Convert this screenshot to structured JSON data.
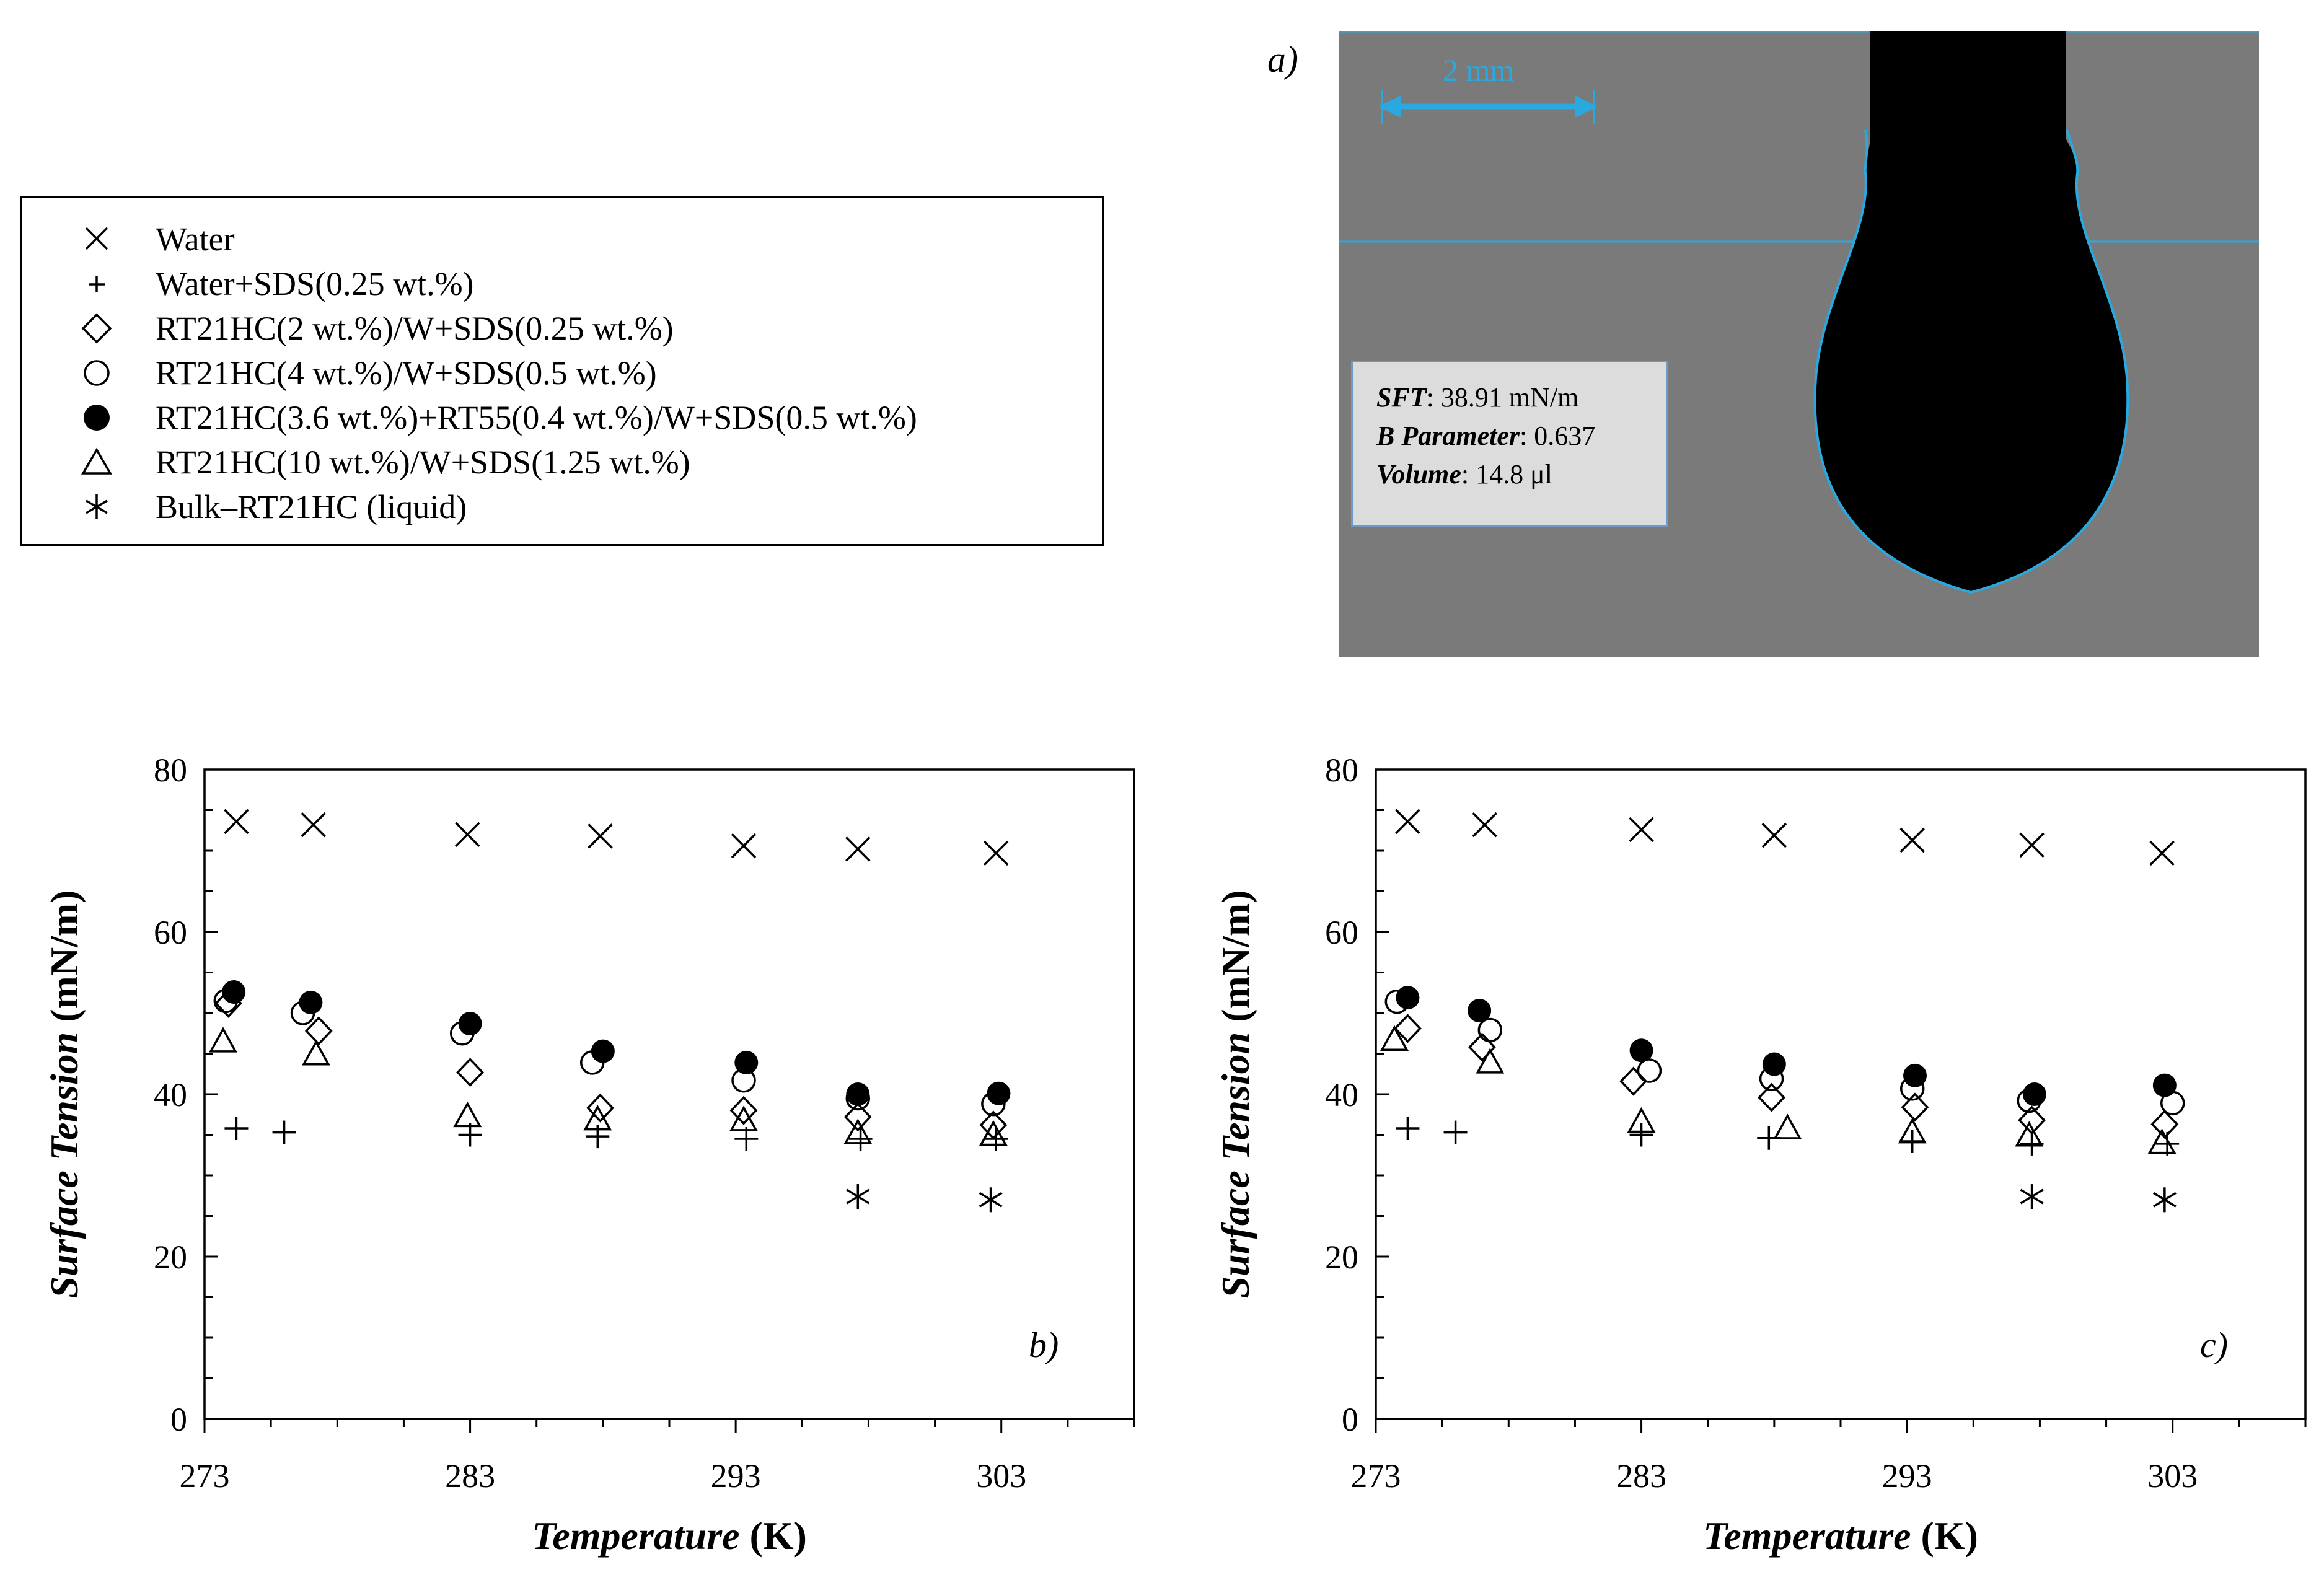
{
  "legend": {
    "items": [
      {
        "marker": "x",
        "label": "Water"
      },
      {
        "marker": "plus",
        "label": "Water+SDS(0.25 wt.%)"
      },
      {
        "marker": "diamond",
        "label": "RT21HC(2 wt.%)/W+SDS(0.25 wt.%)"
      },
      {
        "marker": "circle-open",
        "label": "RT21HC(4 wt.%)/W+SDS(0.5 wt.%)"
      },
      {
        "marker": "circle-filled",
        "label": "RT21HC(3.6 wt.%)+RT55(0.4 wt.%)/W+SDS(0.5 wt.%)"
      },
      {
        "marker": "triangle",
        "label": "RT21HC(10 wt.%)/W+SDS(1.25 wt.%)"
      },
      {
        "marker": "asterisk",
        "label": "Bulk–RT21HC (liquid)"
      }
    ]
  },
  "droplet": {
    "panel_label": "a)",
    "scale_label": "2 mm",
    "sft_key": "SFT",
    "sft_value": ": 38.91 mN/m",
    "b_key": "B Parameter",
    "b_value": ": 0.637",
    "volume_key": "Volume",
    "volume_value": ": 14.8 μl",
    "colors": {
      "background": "#7a7a7a",
      "drop": "#000000",
      "contour": "#29a9df"
    }
  },
  "chart_data": [
    {
      "type": "scatter",
      "panel_label": "b)",
      "xlabel_italic": "Temperature",
      "xlabel_unit": " (K)",
      "ylabel_italic": "Surface Tension",
      "ylabel_unit": " (mN/m)",
      "xlim": [
        273,
        308
      ],
      "ylim": [
        0,
        80
      ],
      "xticks": [
        273,
        283,
        293,
        303
      ],
      "yticks": [
        0,
        20,
        40,
        60,
        80
      ],
      "series": [
        {
          "name": "Water",
          "marker": "x",
          "x": [
            274.2,
            277.1,
            282.9,
            287.9,
            293.3,
            297.6,
            302.8
          ],
          "y": [
            73.6,
            73.2,
            72.0,
            71.8,
            70.6,
            70.2,
            69.7
          ]
        },
        {
          "name": "Water+SDS(0.25 wt.%)",
          "marker": "plus",
          "x": [
            274.2,
            276.0,
            283.0,
            287.8,
            293.4,
            297.7,
            302.8
          ],
          "y": [
            35.8,
            35.3,
            35.0,
            34.8,
            34.5,
            34.5,
            34.5
          ]
        },
        {
          "name": "RT21HC(2 wt.%)/W+SDS(0.25 wt.%)",
          "marker": "diamond",
          "x": [
            273.9,
            277.3,
            283.0,
            287.9,
            293.3,
            297.6,
            302.7
          ],
          "y": [
            51.2,
            47.8,
            42.7,
            38.3,
            38.0,
            37.2,
            36.2
          ]
        },
        {
          "name": "RT21HC(4 wt.%)/W+SDS(0.5 wt.%)",
          "marker": "circle-open",
          "x": [
            273.8,
            276.7,
            282.7,
            287.6,
            293.3,
            297.6,
            302.7
          ],
          "y": [
            51.5,
            50.0,
            47.5,
            43.9,
            41.7,
            39.5,
            38.8
          ]
        },
        {
          "name": "RT21HC(3.6 wt.%)+RT55(0.4 wt.%)/W+SDS(0.5 wt.%)",
          "marker": "circle-filled",
          "x": [
            274.1,
            277.0,
            283.0,
            288.0,
            293.4,
            297.6,
            302.9
          ],
          "y": [
            52.6,
            51.3,
            48.7,
            45.3,
            43.9,
            40.0,
            40.1
          ]
        },
        {
          "name": "RT21HC(10 wt.%)/W+SDS(1.25 wt.%)",
          "marker": "triangle",
          "x": [
            273.7,
            277.2,
            282.9,
            287.8,
            293.3,
            297.6,
            302.7
          ],
          "y": [
            46.5,
            44.9,
            37.3,
            36.9,
            36.8,
            35.2,
            35.0
          ]
        },
        {
          "name": "Bulk–RT21HC (liquid)",
          "marker": "asterisk",
          "x": [
            297.6,
            302.6
          ],
          "y": [
            27.4,
            27.0
          ]
        }
      ]
    },
    {
      "type": "scatter",
      "panel_label": "c)",
      "xlabel_italic": "Temperature",
      "xlabel_unit": " (K)",
      "ylabel_italic": "Surface Tension",
      "ylabel_unit": " (mN/m)",
      "xlim": [
        273,
        308
      ],
      "ylim": [
        0,
        80
      ],
      "xticks": [
        273,
        283,
        293,
        303
      ],
      "yticks": [
        0,
        20,
        40,
        60,
        80
      ],
      "series": [
        {
          "name": "Water",
          "marker": "x",
          "x": [
            274.2,
            277.1,
            283.0,
            288.0,
            293.2,
            297.7,
            302.6
          ],
          "y": [
            73.6,
            73.2,
            72.6,
            71.9,
            71.3,
            70.7,
            69.7
          ]
        },
        {
          "name": "Water+SDS(0.25 wt.%)",
          "marker": "plus",
          "x": [
            274.2,
            276.0,
            283.0,
            287.8,
            293.2,
            297.7,
            302.8
          ],
          "y": [
            35.8,
            35.3,
            35.0,
            34.6,
            34.2,
            33.9,
            33.9
          ]
        },
        {
          "name": "RT21HC(2 wt.%)/W+SDS(0.25 wt.%)",
          "marker": "diamond",
          "x": [
            274.2,
            277.0,
            282.7,
            287.9,
            293.3,
            297.7,
            302.7
          ],
          "y": [
            48.1,
            45.8,
            41.6,
            39.6,
            38.4,
            36.8,
            36.3
          ]
        },
        {
          "name": "RT21HC(4 wt.%)/W+SDS(0.5 wt.%)",
          "marker": "circle-open",
          "x": [
            273.8,
            277.3,
            283.3,
            287.9,
            293.2,
            297.6,
            303.0
          ],
          "y": [
            51.4,
            47.9,
            42.9,
            41.9,
            40.7,
            39.2,
            38.9
          ]
        },
        {
          "name": "RT21HC(3.6 wt.%)+RT55(0.4 wt.%)/W+SDS(0.5 wt.%)",
          "marker": "circle-filled",
          "x": [
            274.2,
            276.9,
            283.0,
            288.0,
            293.3,
            297.8,
            302.7
          ],
          "y": [
            51.9,
            50.3,
            45.4,
            43.7,
            42.3,
            40.0,
            41.1
          ]
        },
        {
          "name": "RT21HC(10 wt.%)/W+SDS(1.25 wt.%)",
          "marker": "triangle",
          "x": [
            273.7,
            277.3,
            283.0,
            288.5,
            293.2,
            297.6,
            302.6
          ],
          "y": [
            46.7,
            43.9,
            36.6,
            35.8,
            35.3,
            34.9,
            34.0
          ]
        },
        {
          "name": "Bulk–RT21HC (liquid)",
          "marker": "asterisk",
          "x": [
            297.7,
            302.7
          ],
          "y": [
            27.4,
            27.0
          ]
        }
      ]
    }
  ]
}
